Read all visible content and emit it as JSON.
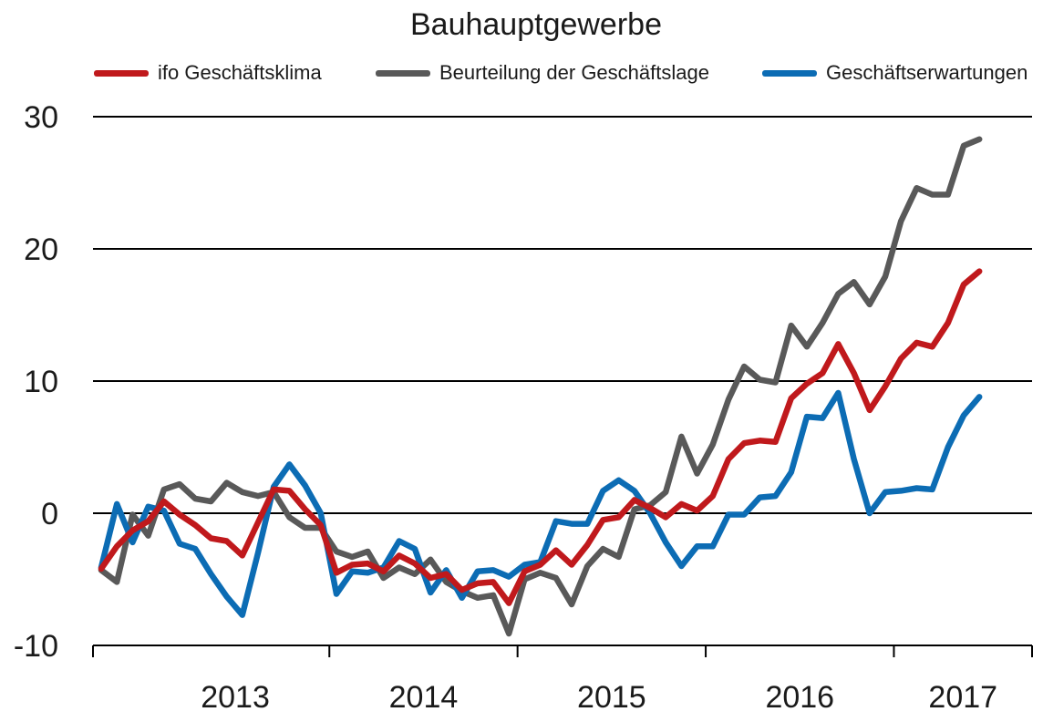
{
  "chart_data": {
    "type": "line",
    "title": "Bauhauptgewerbe",
    "xlabel": "",
    "ylabel": "",
    "ylim": [
      -10,
      30
    ],
    "yticks": [
      30,
      20,
      10,
      0,
      -10
    ],
    "ytick_labels": [
      "30",
      "20",
      "10",
      "0",
      "-10"
    ],
    "xticks": [
      2013,
      2014,
      2015,
      2016,
      2017
    ],
    "grid": "horizontal",
    "legend_position": "top",
    "x_start": "2012-10",
    "x_unit": "month",
    "series": [
      {
        "name": "ifo Geschäftsklima",
        "color": "#c0191c",
        "values": [
          -4.2,
          -2.5,
          -1.3,
          -0.6,
          0.9,
          -0.1,
          -0.9,
          -1.9,
          -2.1,
          -3.2,
          -0.7,
          1.8,
          1.7,
          0.3,
          -0.9,
          -4.5,
          -3.9,
          -3.8,
          -4.4,
          -3.2,
          -3.8,
          -4.9,
          -4.6,
          -5.8,
          -5.3,
          -5.2,
          -6.8,
          -4.4,
          -3.9,
          -2.8,
          -3.9,
          -2.4,
          -0.5,
          -0.3,
          1.0,
          0.4,
          -0.3,
          0.7,
          0.2,
          1.3,
          4.1,
          5.3,
          5.5,
          5.4,
          8.7,
          9.8,
          10.6,
          12.8,
          10.6,
          7.8,
          9.6,
          11.7,
          12.9,
          12.6,
          14.4,
          17.3,
          18.3
        ]
      },
      {
        "name": "Beurteilung der Geschäftslage",
        "color": "#595959",
        "values": [
          -4.3,
          -5.2,
          -0.1,
          -1.7,
          1.8,
          2.2,
          1.1,
          0.9,
          2.3,
          1.6,
          1.3,
          1.6,
          -0.3,
          -1.1,
          -1.1,
          -2.9,
          -3.3,
          -2.9,
          -4.9,
          -4.1,
          -4.6,
          -3.5,
          -5.2,
          -5.9,
          -6.4,
          -6.2,
          -9.1,
          -5.0,
          -4.5,
          -4.9,
          -6.9,
          -4.0,
          -2.7,
          -3.3,
          0.3,
          0.6,
          1.6,
          5.8,
          3.0,
          5.2,
          8.6,
          11.1,
          10.1,
          9.9,
          14.2,
          12.6,
          14.4,
          16.6,
          17.5,
          15.8,
          17.9,
          22.1,
          24.6,
          24.1,
          24.1,
          27.8,
          28.3
        ]
      },
      {
        "name": "Geschäftserwartungen",
        "color": "#0c6cb4",
        "values": [
          -4.1,
          0.7,
          -2.2,
          0.5,
          0.2,
          -2.3,
          -2.7,
          -4.6,
          -6.3,
          -7.7,
          -3.0,
          2.0,
          3.7,
          2.1,
          0.0,
          -6.1,
          -4.4,
          -4.5,
          -4.1,
          -2.1,
          -2.7,
          -6.0,
          -4.3,
          -6.4,
          -4.4,
          -4.3,
          -4.8,
          -3.9,
          -3.7,
          -0.6,
          -0.8,
          -0.8,
          1.7,
          2.5,
          1.7,
          0.0,
          -2.2,
          -4.0,
          -2.5,
          -2.5,
          -0.1,
          -0.1,
          1.2,
          1.3,
          3.1,
          7.3,
          7.2,
          9.1,
          4.1,
          0.0,
          1.6,
          1.7,
          1.9,
          1.8,
          5.0,
          7.4,
          8.8
        ]
      }
    ]
  }
}
